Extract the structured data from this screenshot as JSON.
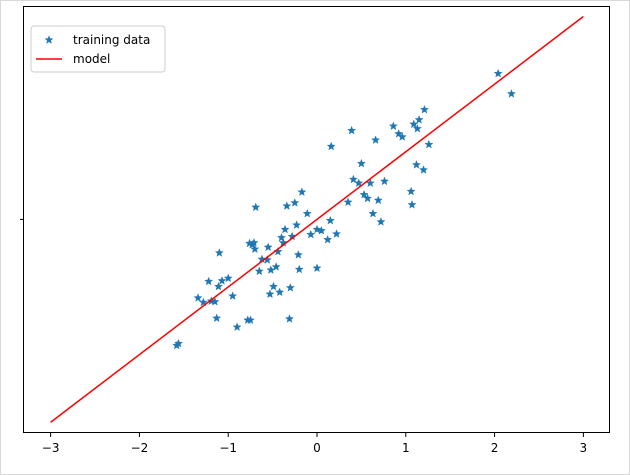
{
  "chart_data": {
    "type": "scatter",
    "title": "",
    "xlabel": "",
    "ylabel": "",
    "xlim": [
      -3.3,
      3.3
    ],
    "ylim": [
      -3.37,
      3.35
    ],
    "grid": false,
    "legend_position": "top-left",
    "x_ticks": [
      -3,
      -2,
      -1,
      0,
      1,
      2,
      3
    ],
    "x_tick_labels": [
      "−3",
      "−2",
      "−1",
      "0",
      "1",
      "2",
      "3"
    ],
    "y_ticks": [
      0
    ],
    "y_tick_labels": [
      ""
    ],
    "series": [
      {
        "name": "training data",
        "kind": "scatter",
        "marker": "star",
        "color": "#1f77b4",
        "points": [
          [
            -1.58,
            -1.99
          ],
          [
            -1.56,
            -1.96
          ],
          [
            -1.34,
            -1.24
          ],
          [
            -1.28,
            -1.31
          ],
          [
            -1.22,
            -0.98
          ],
          [
            -1.19,
            -1.29
          ],
          [
            -1.15,
            -1.3
          ],
          [
            -1.13,
            -1.56
          ],
          [
            -1.11,
            -1.06
          ],
          [
            -1.1,
            -0.53
          ],
          [
            -1.07,
            -0.97
          ],
          [
            -1.0,
            -0.93
          ],
          [
            -0.95,
            -1.21
          ],
          [
            -0.9,
            -1.7
          ],
          [
            -0.78,
            -1.59
          ],
          [
            -0.76,
            -0.38
          ],
          [
            -0.75,
            -1.59
          ],
          [
            -0.73,
            -0.4
          ],
          [
            -0.71,
            -0.37
          ],
          [
            -0.7,
            -0.47
          ],
          [
            -0.69,
            0.19
          ],
          [
            -0.65,
            -0.82
          ],
          [
            -0.62,
            -0.63
          ],
          [
            -0.56,
            -0.64
          ],
          [
            -0.55,
            -0.44
          ],
          [
            -0.53,
            -1.18
          ],
          [
            -0.52,
            -0.8
          ],
          [
            -0.49,
            -1.06
          ],
          [
            -0.46,
            -0.75
          ],
          [
            -0.44,
            -0.51
          ],
          [
            -0.42,
            -1.15
          ],
          [
            -0.4,
            -0.29
          ],
          [
            -0.38,
            -0.37
          ],
          [
            -0.36,
            -0.16
          ],
          [
            -0.34,
            0.21
          ],
          [
            -0.31,
            -1.57
          ],
          [
            -0.3,
            -1.08
          ],
          [
            -0.28,
            -0.27
          ],
          [
            -0.25,
            0.26
          ],
          [
            -0.23,
            -0.09
          ],
          [
            -0.21,
            -0.56
          ],
          [
            -0.2,
            -0.79
          ],
          [
            -0.17,
            0.43
          ],
          [
            -0.11,
            0.09
          ],
          [
            -0.07,
            -0.24
          ],
          [
            0.0,
            -0.16
          ],
          [
            0.0,
            -0.77
          ],
          [
            0.05,
            -0.18
          ],
          [
            0.12,
            -0.32
          ],
          [
            0.15,
            -0.02
          ],
          [
            0.16,
            1.15
          ],
          [
            0.22,
            -0.23
          ],
          [
            0.35,
            0.27
          ],
          [
            0.39,
            1.4
          ],
          [
            0.41,
            0.63
          ],
          [
            0.47,
            0.57
          ],
          [
            0.5,
            0.88
          ],
          [
            0.53,
            0.39
          ],
          [
            0.57,
            0.33
          ],
          [
            0.6,
            0.57
          ],
          [
            0.63,
            0.09
          ],
          [
            0.66,
            1.25
          ],
          [
            0.69,
            0.3
          ],
          [
            0.72,
            -0.04
          ],
          [
            0.76,
            0.6
          ],
          [
            0.86,
            1.47
          ],
          [
            0.92,
            1.35
          ],
          [
            0.96,
            1.3
          ],
          [
            1.06,
            0.44
          ],
          [
            1.07,
            0.23
          ],
          [
            1.09,
            1.5
          ],
          [
            1.12,
            0.86
          ],
          [
            1.13,
            1.43
          ],
          [
            1.15,
            1.57
          ],
          [
            1.2,
            0.78
          ],
          [
            1.21,
            1.73
          ],
          [
            1.26,
            1.18
          ],
          [
            2.04,
            2.3
          ],
          [
            2.19,
            1.98
          ]
        ]
      },
      {
        "name": "model",
        "kind": "line",
        "color": "#ff0000",
        "points": [
          [
            -3.0,
            -3.2
          ],
          [
            3.0,
            3.2
          ]
        ]
      }
    ]
  }
}
